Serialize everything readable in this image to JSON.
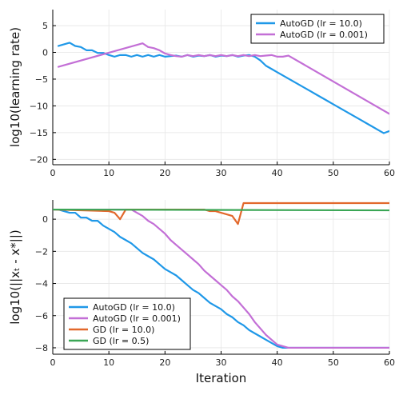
{
  "chart_data": [
    {
      "type": "line",
      "title": "",
      "xlabel": "",
      "ylabel": "log10(learning rate)",
      "xlim": [
        0,
        60
      ],
      "ylim": [
        -21,
        8
      ],
      "xticks": [
        0,
        10,
        20,
        30,
        40,
        50,
        60
      ],
      "yticks": [
        5,
        0,
        -5,
        -10,
        -15,
        -20
      ],
      "grid": true,
      "legend_position": "top-right",
      "series": [
        {
          "name": "AutoGD (lr = 10.0)",
          "color": "#1f98e8",
          "x": [
            1,
            2,
            3,
            4,
            5,
            6,
            7,
            8,
            9,
            10,
            11,
            12,
            13,
            14,
            15,
            16,
            17,
            18,
            19,
            20,
            21,
            22,
            23,
            24,
            25,
            26,
            27,
            28,
            29,
            30,
            31,
            32,
            33,
            34,
            35,
            36,
            37,
            38,
            39,
            40,
            41,
            42,
            43,
            44,
            45,
            46,
            47,
            48,
            49,
            50,
            51,
            52,
            53,
            54,
            55,
            56,
            57,
            58,
            59,
            60
          ],
          "y": [
            1.2,
            1.5,
            1.8,
            1.2,
            1.0,
            0.4,
            0.4,
            -0.1,
            -0.1,
            -0.5,
            -0.8,
            -0.5,
            -0.5,
            -0.8,
            -0.5,
            -0.8,
            -0.5,
            -0.8,
            -0.5,
            -0.8,
            -0.7,
            -0.6,
            -0.8,
            -0.5,
            -0.8,
            -0.6,
            -0.7,
            -0.5,
            -0.8,
            -0.6,
            -0.7,
            -0.5,
            -0.8,
            -0.6,
            -0.5,
            -0.8,
            -1.5,
            -2.5,
            -3.1,
            -3.7,
            -4.3,
            -4.9,
            -5.5,
            -6.1,
            -6.7,
            -7.3,
            -7.9,
            -8.5,
            -9.1,
            -9.7,
            -10.3,
            -10.9,
            -11.5,
            -12.1,
            -12.7,
            -13.3,
            -13.9,
            -14.5,
            -15.1,
            -14.7
          ]
        },
        {
          "name": "AutoGD (lr = 0.001)",
          "color": "#c36fd6",
          "x": [
            1,
            16,
            17,
            18,
            19,
            20,
            21,
            22,
            23,
            24,
            25,
            26,
            27,
            28,
            29,
            30,
            31,
            32,
            33,
            34,
            35,
            36,
            37,
            38,
            39,
            40,
            41,
            42,
            60
          ],
          "y": [
            -2.7,
            1.7,
            1.0,
            0.8,
            0.4,
            -0.2,
            -0.5,
            -0.7,
            -0.8,
            -0.5,
            -0.7,
            -0.5,
            -0.7,
            -0.5,
            -0.7,
            -0.5,
            -0.7,
            -0.5,
            -0.7,
            -0.5,
            -0.7,
            -0.5,
            -0.7,
            -0.6,
            -0.5,
            -0.8,
            -0.8,
            -0.6,
            -11.5
          ]
        }
      ]
    },
    {
      "type": "line",
      "title": "",
      "xlabel": "Iteration",
      "ylabel": "log10(||xₜ - x*||)",
      "xlim": [
        0,
        60
      ],
      "ylim": [
        -8.4,
        1.2
      ],
      "xticks": [
        0,
        10,
        20,
        30,
        40,
        50,
        60
      ],
      "yticks": [
        0,
        -2,
        -4,
        -6,
        -8
      ],
      "grid": true,
      "legend_position": "bottom-left",
      "series": [
        {
          "name": "AutoGD (lr = 10.0)",
          "color": "#1f98e8",
          "x": [
            0,
            1,
            2,
            3,
            4,
            5,
            6,
            7,
            8,
            9,
            10,
            11,
            12,
            13,
            14,
            15,
            16,
            17,
            18,
            19,
            20,
            21,
            22,
            23,
            24,
            25,
            26,
            27,
            28,
            29,
            30,
            31,
            32,
            33,
            34,
            35,
            36,
            37,
            38,
            39,
            40,
            41,
            42,
            60
          ],
          "y": [
            0.6,
            0.6,
            0.5,
            0.4,
            0.4,
            0.1,
            0.1,
            -0.1,
            -0.1,
            -0.4,
            -0.6,
            -0.8,
            -1.1,
            -1.3,
            -1.5,
            -1.8,
            -2.1,
            -2.3,
            -2.5,
            -2.8,
            -3.1,
            -3.3,
            -3.5,
            -3.8,
            -4.1,
            -4.4,
            -4.6,
            -4.9,
            -5.2,
            -5.4,
            -5.6,
            -5.9,
            -6.1,
            -6.4,
            -6.6,
            -6.9,
            -7.1,
            -7.3,
            -7.5,
            -7.7,
            -7.9,
            -8.0,
            -8.0,
            -8.0
          ]
        },
        {
          "name": "AutoGD (lr = 0.001)",
          "color": "#c36fd6",
          "x": [
            0,
            14,
            15,
            16,
            17,
            18,
            19,
            20,
            21,
            22,
            23,
            24,
            25,
            26,
            27,
            28,
            29,
            30,
            31,
            32,
            33,
            34,
            35,
            36,
            37,
            38,
            39,
            40,
            41,
            42,
            60
          ],
          "y": [
            0.6,
            0.6,
            0.4,
            0.2,
            -0.1,
            -0.3,
            -0.6,
            -0.9,
            -1.3,
            -1.6,
            -1.9,
            -2.2,
            -2.5,
            -2.8,
            -3.2,
            -3.5,
            -3.8,
            -4.1,
            -4.4,
            -4.8,
            -5.1,
            -5.5,
            -5.9,
            -6.4,
            -6.8,
            -7.2,
            -7.5,
            -7.8,
            -7.9,
            -8.0,
            -8.0
          ]
        },
        {
          "name": "GD (lr = 10.0)",
          "color": "#e2682c",
          "x": [
            0,
            10,
            11,
            12,
            13,
            14,
            15,
            16,
            17,
            18,
            19,
            20,
            21,
            22,
            23,
            24,
            25,
            26,
            27,
            28,
            29,
            30,
            31,
            32,
            33,
            34,
            35,
            36,
            37,
            38,
            39,
            40,
            60
          ],
          "y": [
            0.6,
            0.5,
            0.4,
            0.0,
            0.6,
            0.6,
            0.6,
            0.6,
            0.6,
            0.6,
            0.6,
            0.6,
            0.6,
            0.6,
            0.6,
            0.6,
            0.6,
            0.6,
            0.6,
            0.5,
            0.5,
            0.4,
            0.3,
            0.2,
            -0.3,
            1.0,
            1.0,
            1.0,
            1.0,
            1.0,
            1.0,
            1.0,
            1.0
          ]
        },
        {
          "name": "GD (lr = 0.5)",
          "color": "#3aa655",
          "x": [
            0,
            60
          ],
          "y": [
            0.6,
            0.55
          ]
        }
      ]
    }
  ]
}
